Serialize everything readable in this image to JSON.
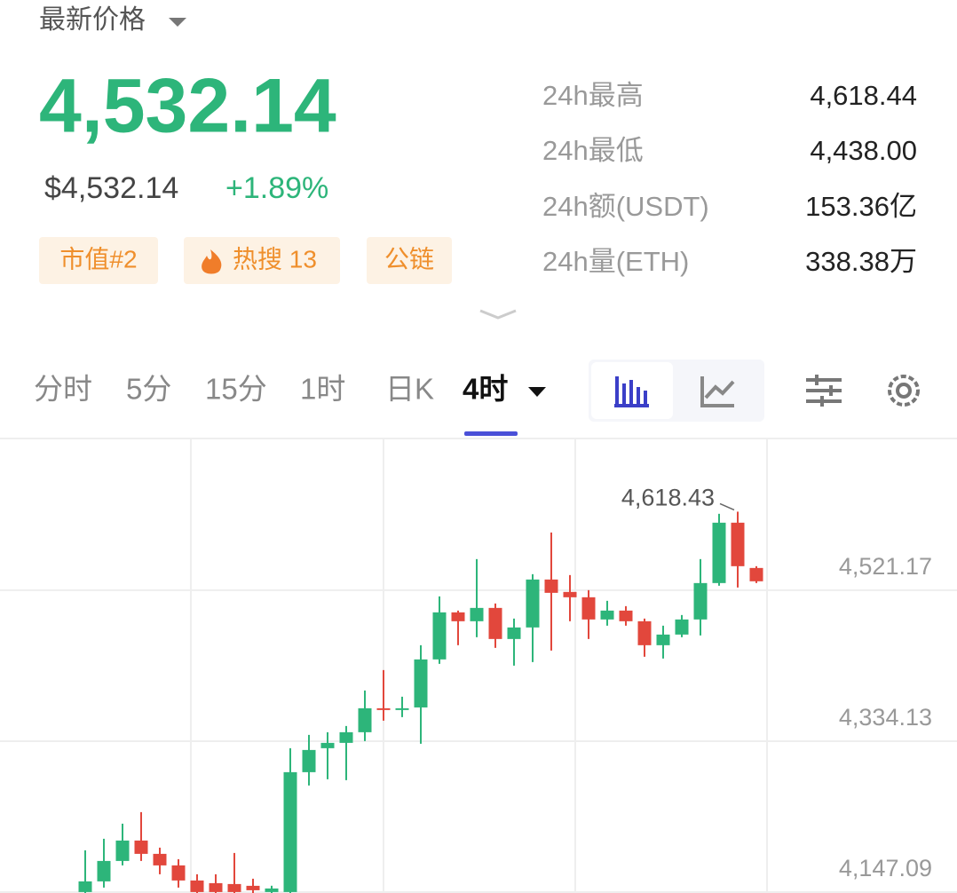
{
  "header": {
    "label": "最新价格",
    "price": "4,532.14",
    "usd_price": "$4,532.14",
    "change": "+1.89%"
  },
  "tags": [
    "市值#2",
    "热搜 13",
    "公链"
  ],
  "stats": [
    {
      "label": "24h最高",
      "value": "4,618.44"
    },
    {
      "label": "24h最低",
      "value": "4,438.00"
    },
    {
      "label": "24h额(USDT)",
      "value": "153.36亿"
    },
    {
      "label": "24h量(ETH)",
      "value": "338.38万"
    }
  ],
  "tabs": [
    "分时",
    "5分",
    "15分",
    "1时",
    "日K",
    "4时"
  ],
  "chart_data": {
    "type": "candlestick",
    "annotation": "4,618.43",
    "up_color": "#2db57a",
    "down_color": "#e2473c",
    "grid": true,
    "ylim": [
      4146,
      4708
    ],
    "yticks": [
      {
        "value": 4147.09,
        "label": "4,147.09"
      },
      {
        "value": 4334.13,
        "label": "4,334.13"
      },
      {
        "value": 4521.17,
        "label": "4,521.17"
      }
    ],
    "open": [
      4147.2,
      4160.4,
      4185.7,
      4211.0,
      4194.5,
      4180.2,
      4161.5,
      4158.2,
      4157.1,
      4154.9,
      4147.2,
      4147.2,
      4295.7,
      4325.4,
      4332.0,
      4345.2,
      4374.9,
      4373.8,
      4375.9,
      4435.4,
      4493.7,
      4482.7,
      4499.2,
      4460.7,
      4475.0,
      4534.4,
      4519.0,
      4512.4,
      4484.9,
      4495.9,
      4482.7,
      4453.0,
      4466.2,
      4484.9,
      4530.0,
      4604.8,
      4548.7
    ],
    "high": [
      4198.9,
      4213.2,
      4231.9,
      4246.2,
      4202.2,
      4187.9,
      4169.2,
      4169.2,
      4195.6,
      4163.7,
      4155.0,
      4325.4,
      4341.9,
      4345.2,
      4352.9,
      4396.9,
      4422.2,
      4389.2,
      4453.0,
      4513.5,
      4495.9,
      4559.7,
      4504.7,
      4486.0,
      4541.0,
      4592.7,
      4539.9,
      4521.2,
      4508.0,
      4501.4,
      4486.0,
      4477.2,
      4490.4,
      4559.7,
      4615.8,
      4618.43,
      4550.9
    ],
    "low": [
      4146,
      4152.7,
      4180.2,
      4185.7,
      4169.2,
      4152.7,
      4146,
      4146,
      4146,
      4146,
      4146,
      4146,
      4279.2,
      4286.9,
      4285.8,
      4334.2,
      4359.5,
      4363.9,
      4330.9,
      4429.9,
      4453.0,
      4462.9,
      4449.7,
      4427.7,
      4432.1,
      4446.4,
      4482.7,
      4460.7,
      4477.2,
      4477.2,
      4438.7,
      4436.5,
      4462.9,
      4465.1,
      4526.7,
      4524.5,
      4530.0
    ],
    "close": [
      4160.4,
      4185.7,
      4211.0,
      4194.5,
      4180.2,
      4161.5,
      4147.2,
      4147.2,
      4147.2,
      4149.4,
      4151.6,
      4295.7,
      4323.2,
      4332.0,
      4345.2,
      4374.9,
      4373.8,
      4374.9,
      4435.4,
      4493.7,
      4482.7,
      4499.2,
      4460.7,
      4475.0,
      4534.4,
      4517.9,
      4512.4,
      4484.9,
      4495.9,
      4482.7,
      4453.0,
      4466.2,
      4484.9,
      4530.0,
      4604.8,
      4550.9,
      4532.2
    ]
  }
}
